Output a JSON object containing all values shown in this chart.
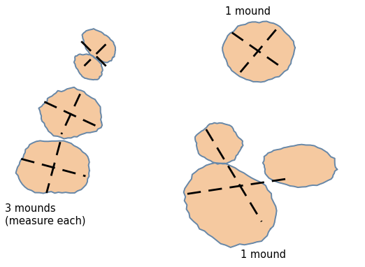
{
  "bg_color": "#ffffff",
  "mound_fill": "#f5c9a0",
  "mound_edge": "#6688aa",
  "mound_edge_width": 1.4,
  "dash_color": "black",
  "dash_lw": 2.0,
  "dash_pattern": [
    7,
    4
  ],
  "label_3mounds": "3 mounds\n(measure each)",
  "label_1mound_top": "1 mound",
  "label_1mound_bottom": "1 mound",
  "label_fontsize": 10.5,
  "figw": 5.22,
  "figh": 3.82,
  "dpi": 100
}
